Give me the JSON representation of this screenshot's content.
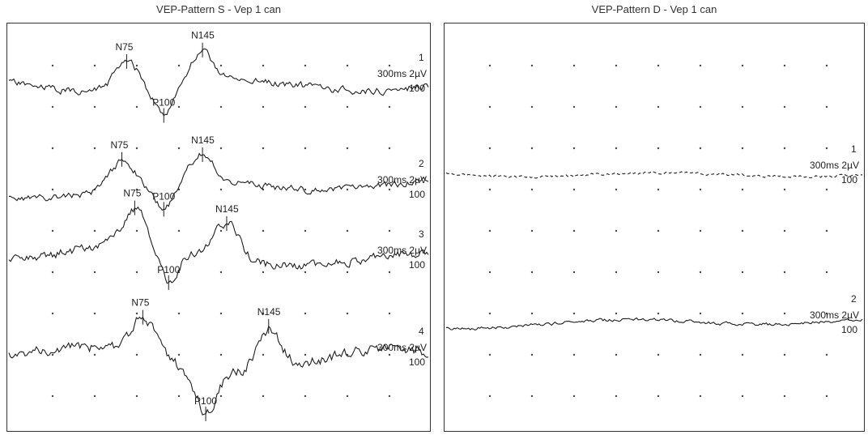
{
  "chart_data": [
    {
      "type": "line",
      "title": "VEP-Pattern S  - Vep 1 can",
      "grid": "dotted",
      "traces": [
        {
          "channel_label": "1",
          "scale_label": "300ms 2µV",
          "count_label": "100",
          "peaks": [
            {
              "name": "N75",
              "x": 0.28
            },
            {
              "name": "P100",
              "x": 0.37
            },
            {
              "name": "N145",
              "x": 0.46
            }
          ]
        },
        {
          "channel_label": "2",
          "scale_label": "300ms 2µV",
          "count_label": "100",
          "peaks": [
            {
              "name": "N75",
              "x": 0.27
            },
            {
              "name": "P100",
              "x": 0.37
            },
            {
              "name": "N145",
              "x": 0.46
            }
          ]
        },
        {
          "channel_label": "3",
          "scale_label": "300ms 2µV",
          "count_label": "100",
          "peaks": [
            {
              "name": "N75",
              "x": 0.3
            },
            {
              "name": "P100",
              "x": 0.38
            },
            {
              "name": "N145",
              "x": 0.52
            }
          ]
        },
        {
          "channel_label": "4",
          "scale_label": "300ms 2µV",
          "count_label": "100",
          "peaks": [
            {
              "name": "N75",
              "x": 0.32
            },
            {
              "name": "P100",
              "x": 0.47
            },
            {
              "name": "N145",
              "x": 0.62
            }
          ]
        }
      ]
    },
    {
      "type": "line",
      "title": "VEP-Pattern D  - Vep 1 can",
      "grid": "dotted",
      "traces": [
        {
          "channel_label": "1",
          "scale_label": "300ms 2µV",
          "count_label": "100",
          "peaks": []
        },
        {
          "channel_label": "2",
          "scale_label": "300ms 2µV",
          "count_label": "100",
          "peaks": []
        }
      ]
    }
  ]
}
